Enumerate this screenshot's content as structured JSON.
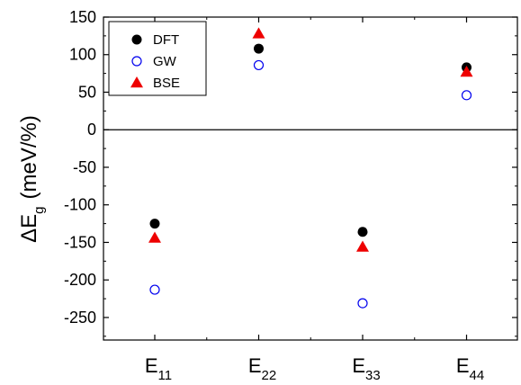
{
  "chart_data": {
    "type": "scatter",
    "categories": [
      {
        "main": "E",
        "sub": "11"
      },
      {
        "main": "E",
        "sub": "22"
      },
      {
        "main": "E",
        "sub": "33"
      },
      {
        "main": "E",
        "sub": "44"
      }
    ],
    "ylabel": {
      "delta": "ΔE",
      "sub": "g",
      "unit": "(meV/%)"
    },
    "ylim": [
      -280,
      150
    ],
    "yticks": [
      "150",
      "100",
      "50",
      "0",
      "-50",
      "-100",
      "-150",
      "-200",
      "-250"
    ],
    "zero_line": true,
    "legend_position": "top-left",
    "series": [
      {
        "name": "DFT",
        "marker": "filled-circle",
        "color": "#000000",
        "values": [
          -125,
          108,
          -136,
          83
        ]
      },
      {
        "name": "GW",
        "marker": "open-circle",
        "color": "#0000ee",
        "values": [
          -213,
          86,
          -231,
          46
        ]
      },
      {
        "name": "BSE",
        "marker": "filled-triangle",
        "color": "#ee0000",
        "values": [
          -144,
          128,
          -156,
          77
        ]
      }
    ]
  }
}
